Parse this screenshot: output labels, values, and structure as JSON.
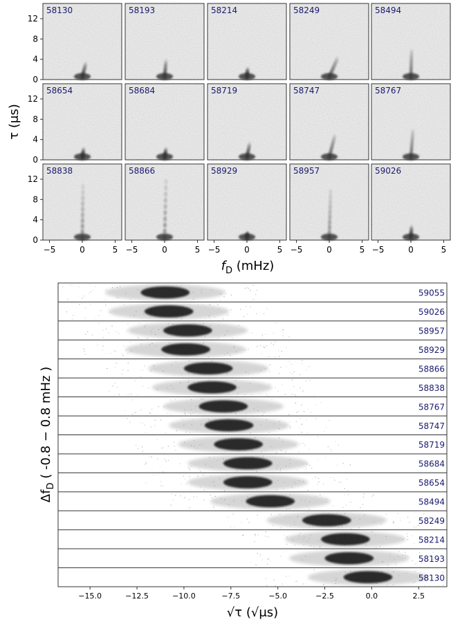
{
  "chart_data": [
    {
      "type": "heatmap",
      "description_kind": "secondary spectra grid",
      "panels": [
        "58130",
        "58193",
        "58214",
        "58249",
        "58494",
        "58654",
        "58684",
        "58719",
        "58747",
        "58767",
        "58838",
        "58866",
        "58929",
        "58957",
        "59026"
      ],
      "grid": {
        "rows": 3,
        "cols": 5
      },
      "xlabel_italic": "f",
      "xlabel_sub": "D",
      "xlabel_unit": " (mHz)",
      "ylabel": "τ (μs)",
      "xticks": [
        "−5",
        "0",
        "5"
      ],
      "xtick_values": [
        -5,
        0,
        5
      ],
      "xlim": [
        -6,
        6
      ],
      "yticks": [
        "0",
        "4",
        "8",
        "12"
      ],
      "ytick_values": [
        0,
        4,
        8,
        12
      ],
      "ylim": [
        0,
        15
      ],
      "cmap": "Greys",
      "label_color": "#191970"
    },
    {
      "type": "heatmap",
      "description_kind": "stacked arc profiles",
      "rows": [
        "59055",
        "59026",
        "58957",
        "58929",
        "58866",
        "58838",
        "58767",
        "58747",
        "58719",
        "58684",
        "58654",
        "58494",
        "58249",
        "58214",
        "58193",
        "58130"
      ],
      "arc_center": [
        -11.0,
        -10.8,
        -9.8,
        -9.9,
        -8.7,
        -8.5,
        -7.9,
        -7.6,
        -7.1,
        -6.6,
        -6.6,
        -5.4,
        -2.4,
        -1.4,
        -1.2,
        -0.2
      ],
      "xlabel_root": "√τ",
      "xlabel_unit": " (√μs)",
      "ylabel": "Δf_D ( -0.8 − 0.8 mHz )",
      "ylabel_prefix": "Δf",
      "ylabel_sub": "D",
      "ylabel_rest": " ( -0.8 − 0.8 mHz )",
      "xticks": [
        "−15.0",
        "−12.5",
        "−10.0",
        "−7.5",
        "−5.0",
        "−2.5",
        "0.0",
        "2.5"
      ],
      "xtick_values": [
        -15,
        -12.5,
        -10,
        -7.5,
        -5,
        -2.5,
        0,
        2.5
      ],
      "xlim": [
        -16.7,
        4.0
      ],
      "cmap": "Greys",
      "label_color": "#191970"
    }
  ]
}
